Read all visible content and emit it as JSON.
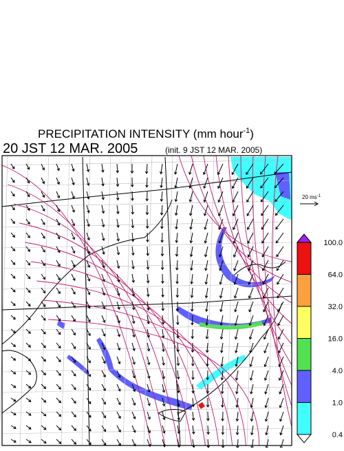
{
  "header": {
    "title": "PRECIPITATION INTENSITY (mm hour",
    "title_exponent": "-1",
    "title_close": ")",
    "valid_time": "20 JST 12 MAR. 2005",
    "init_time": "(init. 9 JST 12 MAR. 2005)"
  },
  "wind_scale": {
    "label": "20 ms",
    "exponent": "-1"
  },
  "colorbar": {
    "labels": [
      "100.0",
      "64.0",
      "32.0",
      "16.0",
      "4.0",
      "1.0",
      "0.4"
    ],
    "colors": [
      "#a020f0",
      "#ee1111",
      "#ffa040",
      "#ffff60",
      "#50e050",
      "#6060ff",
      "#40ffff",
      "#ffffff"
    ]
  }
}
